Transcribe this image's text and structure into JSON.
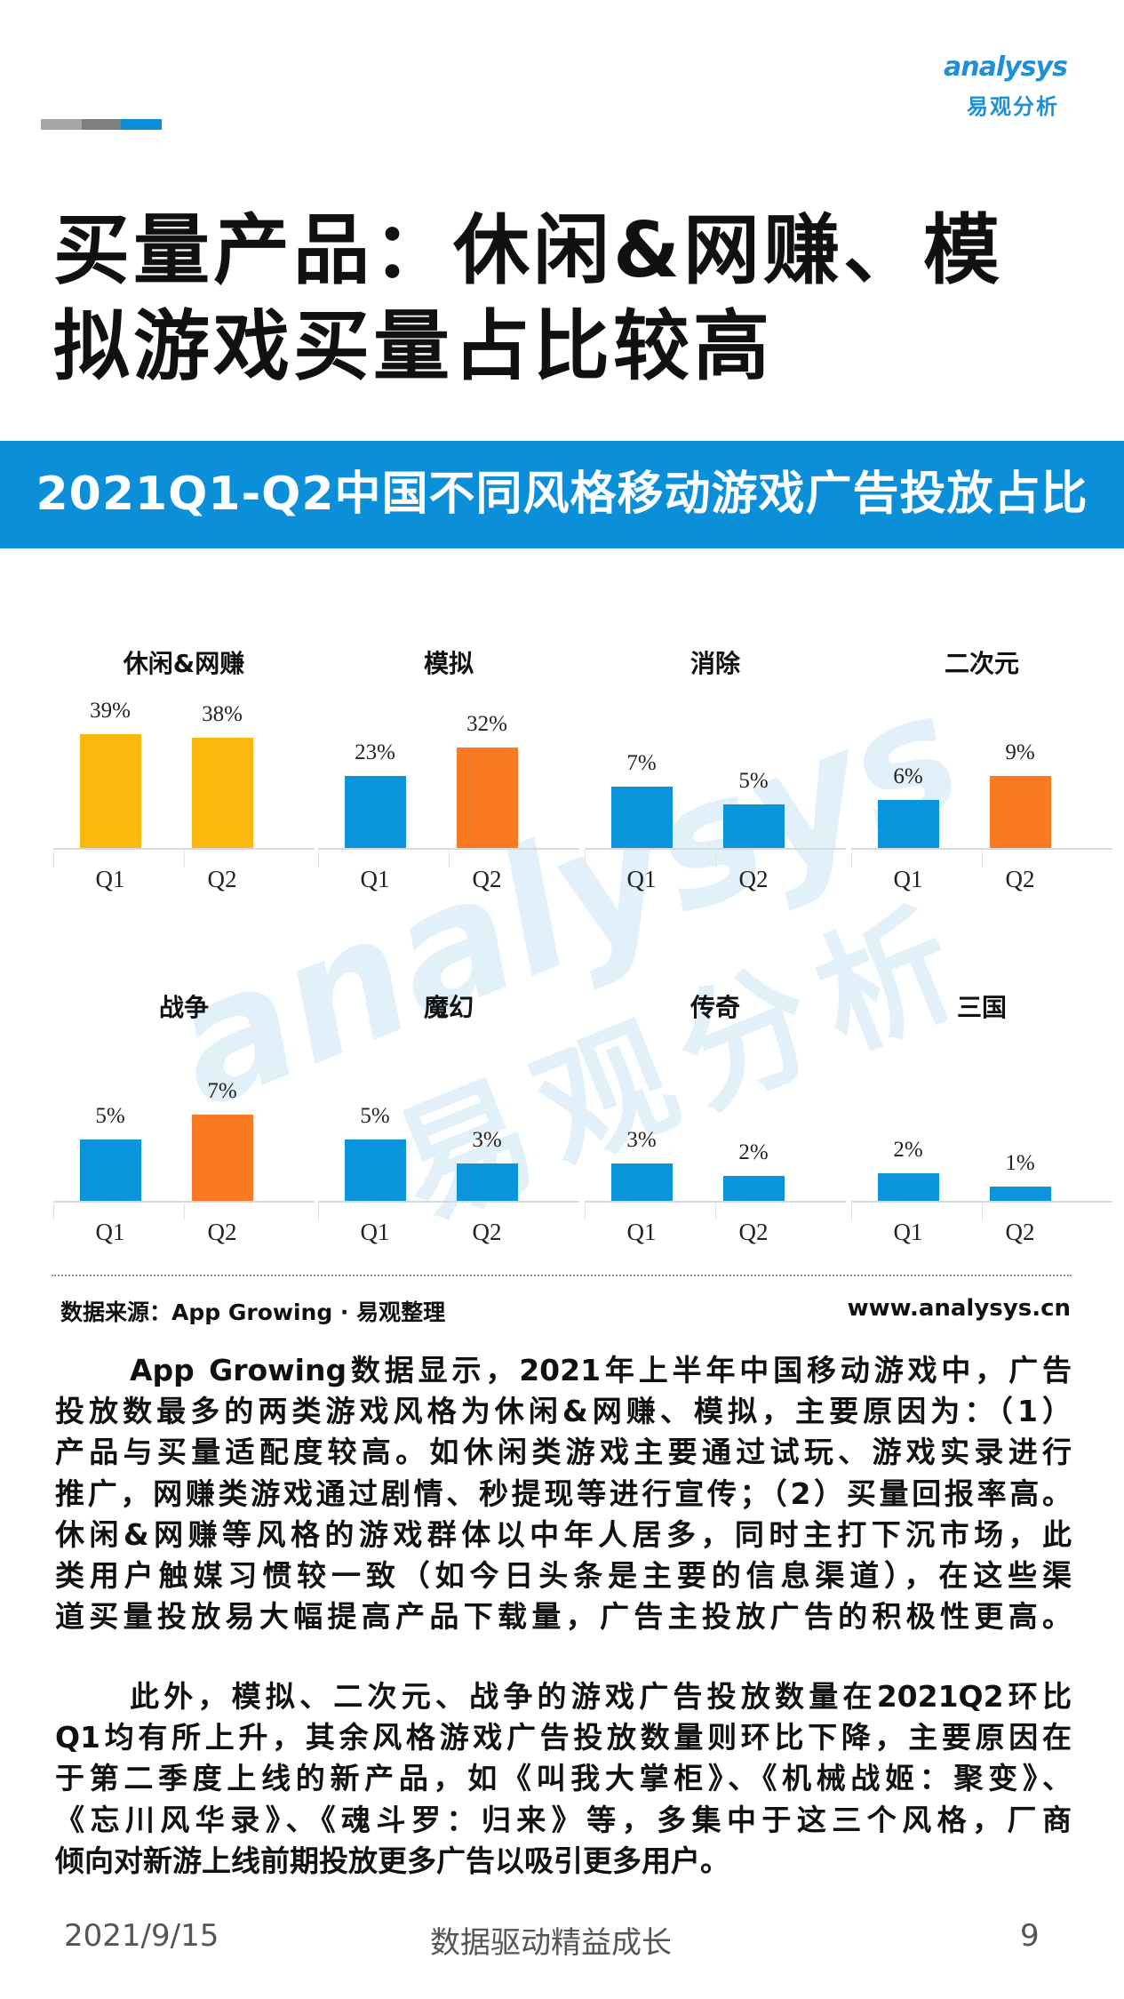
{
  "header": {
    "decor_bar_colors": [
      "#a6a6a6",
      "#7f7f7f",
      "#0a8fd8"
    ],
    "logo": {
      "text_en": "analysys",
      "text_cn": "易观分析",
      "colors": {
        "blue": "#1f8fd6",
        "orange": "#f0a020"
      }
    },
    "title_lines": [
      "买量产品：休闲&网赚、模",
      "拟游戏买量占比较高"
    ]
  },
  "banner": {
    "text": "2021Q1-Q2中国不同风格移动游戏广告投放占比",
    "color": "#0a8fd8"
  },
  "watermark": {
    "text_en": "analysys",
    "text_cn": "易观分析"
  },
  "chart_data": [
    {
      "type": "bar",
      "title": "休闲&网赚",
      "categories": [
        "Q1",
        "Q2"
      ],
      "values": [
        39,
        38
      ],
      "labels": [
        "39%",
        "38%"
      ],
      "colors": [
        "#fbb80f",
        "#fbb80f"
      ],
      "ylim": [
        0,
        55
      ],
      "grid": false
    },
    {
      "type": "bar",
      "title": "模拟",
      "categories": [
        "Q1",
        "Q2"
      ],
      "values": [
        23,
        32
      ],
      "labels": [
        "23%",
        "32%"
      ],
      "colors": [
        "#0a94dc",
        "#f97a22"
      ],
      "ylim": [
        0,
        51
      ],
      "grid": false
    },
    {
      "type": "bar",
      "title": "消除",
      "categories": [
        "Q1",
        "Q2"
      ],
      "values": [
        7,
        5
      ],
      "labels": [
        "7%",
        "5%"
      ],
      "colors": [
        "#0a94dc",
        "#0a94dc"
      ],
      "ylim": [
        0,
        18.3
      ],
      "grid": false
    },
    {
      "type": "bar",
      "title": "二次元",
      "categories": [
        "Q1",
        "Q2"
      ],
      "values": [
        6,
        9
      ],
      "labels": [
        "6%",
        "9%"
      ],
      "colors": [
        "#0a94dc",
        "#f97a22"
      ],
      "ylim": [
        0,
        20
      ],
      "grid": false
    },
    {
      "type": "bar",
      "title": "战争",
      "categories": [
        "Q1",
        "Q2"
      ],
      "values": [
        5,
        7
      ],
      "labels": [
        "5%",
        "7%"
      ],
      "colors": [
        "#0a94dc",
        "#f97a22"
      ],
      "ylim": [
        0,
        13
      ],
      "grid": false
    },
    {
      "type": "bar",
      "title": "魔幻",
      "categories": [
        "Q1",
        "Q2"
      ],
      "values": [
        5,
        3
      ],
      "labels": [
        "5%",
        "3%"
      ],
      "colors": [
        "#0a94dc",
        "#0a94dc"
      ],
      "ylim": [
        0,
        13
      ],
      "grid": false
    },
    {
      "type": "bar",
      "title": "传奇",
      "categories": [
        "Q1",
        "Q2"
      ],
      "values": [
        3,
        2
      ],
      "labels": [
        "3%",
        "2%"
      ],
      "colors": [
        "#0a94dc",
        "#0a94dc"
      ],
      "ylim": [
        0,
        13
      ],
      "grid": false
    },
    {
      "type": "bar",
      "title": "三国",
      "categories": [
        "Q1",
        "Q2"
      ],
      "values": [
        2,
        1
      ],
      "labels": [
        "2%",
        "1%"
      ],
      "colors": [
        "#0a94dc",
        "#0a94dc"
      ],
      "ylim": [
        0,
        11.5
      ],
      "grid": false
    }
  ],
  "source": {
    "text": "数据来源：App Growing · 易观整理",
    "url": "www.analysys.cn"
  },
  "body": {
    "paragraph1": [
      "App  Growing数据显示，2021年上半年中国移动游戏中，广告",
      "投放数最多的两类游戏风格为休闲&网赚、模拟，主要原因为：（1）",
      "产品与买量适配度较高。如休闲类游戏主要通过试玩、游戏实录进行",
      "推广，网赚类游戏通过剧情、秒提现等进行宣传；（2）买量回报率高。",
      "休闲&网赚等风格的游戏群体以中年人居多，同时主打下沉市场，此",
      "类用户触媒习惯较一致（如今日头条是主要的信息渠道），在这些渠",
      "道买量投放易大幅提高产品下载量，广告主投放广告的积极性更高。"
    ],
    "paragraph2": [
      "此外，模拟、二次元、战争的游戏广告投放数量在2021Q2环比",
      "Q1均有所上升，其余风格游戏广告投放数量则环比下降，主要原因在",
      "于第二季度上线的新产品，如《叫我大掌柜》、《机械战姬：聚变》、",
      "《忘川风华录》、《魂斗罗：归来》等，多集中于这三个风格，厂商",
      "倾向对新游上线前期投放更多广告以吸引更多用户。"
    ]
  },
  "footer": {
    "date": "2021/9/15",
    "slogan": "数据驱动精益成长",
    "page": "9"
  }
}
